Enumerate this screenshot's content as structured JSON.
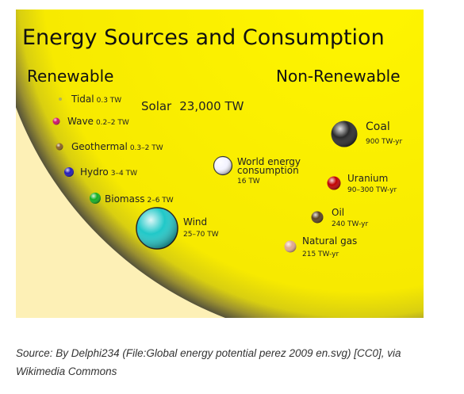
{
  "diagram": {
    "title": "Energy Sources and Consumption",
    "renewable_label": "Renewable",
    "non_renewable_label": "Non-Renewable",
    "solar": {
      "name": "Solar",
      "value": "23,000 TW"
    },
    "world": {
      "line1": "World energy",
      "line2": "consumption",
      "value": "16 TW"
    },
    "renewable_sources": [
      {
        "name": "Tidal",
        "value": "0.3 TW",
        "color": "#b0b060"
      },
      {
        "name": "Wave",
        "value": "0.2–2 TW",
        "color": "#d0106a"
      },
      {
        "name": "Geothermal",
        "value": "0.3–2 TW",
        "color": "#8a6020"
      },
      {
        "name": "Hydro",
        "value": "3–4 TW",
        "color": "#2018b8"
      },
      {
        "name": "Biomass",
        "value": "2–6 TW",
        "color": "#10b020"
      },
      {
        "name": "Wind",
        "value": "25–70 TW",
        "color": "#20c8c8"
      }
    ],
    "non_renewable_sources": [
      {
        "name": "Coal",
        "value": "900 TW-yr",
        "color": "#2a2a2a"
      },
      {
        "name": "Uranium",
        "value": "90–300 TW-yr",
        "color": "#c00000"
      },
      {
        "name": "Oil",
        "value": "240 TW-yr",
        "color": "#5a4020"
      },
      {
        "name": "Natural gas",
        "value": "215 TW-yr",
        "color": "#e0a890"
      }
    ],
    "colors": {
      "sun": "#f7ec00",
      "sun_edge": "#5a5630",
      "background": "#fdf0b6",
      "world": "#ffffff"
    }
  },
  "caption": "Source: By Delphi234 (File:Global energy potential perez 2009 en.svg) [CC0], via Wikimedia Commons"
}
